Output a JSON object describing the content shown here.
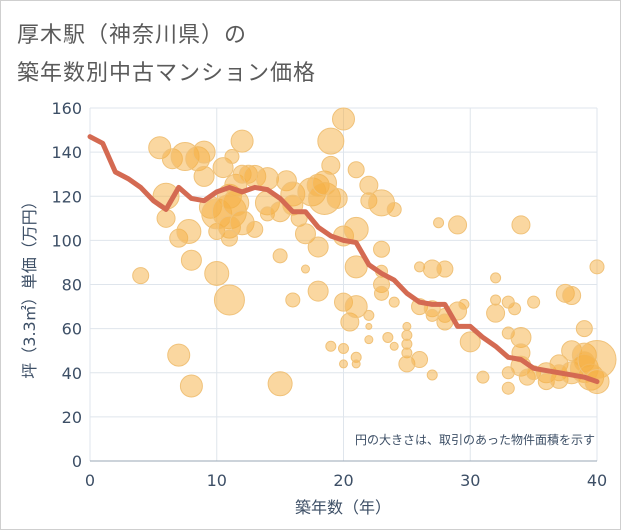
{
  "header": {
    "title_line1": "厚木駅（神奈川県）の",
    "title_line2": "築年数別中古マンション価格"
  },
  "colors": {
    "bubble_fill": "#f5b041",
    "bubble_stroke": "#f0c27a",
    "line": "#d46a52",
    "grid": "#dfe5ec",
    "axis_text": "#3d4f66",
    "title_text": "#5a5a5a"
  },
  "chart_data": {
    "type": "scatter",
    "title": "厚木駅（神奈川県）の築年数別中古マンション価格",
    "xlabel": "築年数（年）",
    "ylabel": "坪（3.3㎡）単価（万円）",
    "xlim": [
      0,
      40
    ],
    "ylim": [
      0,
      160
    ],
    "xticks": [
      0,
      10,
      20,
      30,
      40
    ],
    "yticks": [
      0,
      20,
      40,
      60,
      80,
      100,
      120,
      140,
      160
    ],
    "grid": true,
    "note": "円の大きさは、取引のあった物件面積を示す",
    "trend_line": {
      "x": [
        0,
        1,
        2,
        3,
        4,
        5,
        6,
        7,
        8,
        9,
        10,
        11,
        12,
        13,
        14,
        15,
        16,
        17,
        18,
        19,
        20,
        21,
        22,
        23,
        24,
        25,
        26,
        27,
        28,
        29,
        30,
        31,
        32,
        33,
        34,
        35,
        36,
        37,
        38,
        39,
        40
      ],
      "y": [
        147,
        144,
        131,
        128,
        124,
        118,
        114,
        124,
        119,
        118,
        122,
        124,
        122,
        124,
        123,
        119,
        113,
        113,
        106,
        102,
        100,
        99,
        89,
        85,
        82,
        76,
        72,
        71,
        71,
        61,
        61,
        56,
        52,
        47,
        46,
        42,
        41,
        40,
        39,
        38,
        36
      ]
    },
    "points": [
      {
        "x": 4,
        "y": 84,
        "s": 8
      },
      {
        "x": 5.5,
        "y": 142,
        "s": 11
      },
      {
        "x": 6,
        "y": 120,
        "s": 13
      },
      {
        "x": 6,
        "y": 110,
        "s": 9
      },
      {
        "x": 6.5,
        "y": 137,
        "s": 10
      },
      {
        "x": 7,
        "y": 48,
        "s": 11
      },
      {
        "x": 7,
        "y": 101,
        "s": 9
      },
      {
        "x": 7.5,
        "y": 138,
        "s": 14
      },
      {
        "x": 7.8,
        "y": 104,
        "s": 12
      },
      {
        "x": 8,
        "y": 91,
        "s": 10
      },
      {
        "x": 8,
        "y": 34,
        "s": 11
      },
      {
        "x": 8.5,
        "y": 137,
        "s": 12
      },
      {
        "x": 9,
        "y": 140,
        "s": 11
      },
      {
        "x": 9,
        "y": 129,
        "s": 10
      },
      {
        "x": 9.5,
        "y": 115,
        "s": 11
      },
      {
        "x": 10,
        "y": 85,
        "s": 12
      },
      {
        "x": 10,
        "y": 104,
        "s": 8
      },
      {
        "x": 10,
        "y": 112,
        "s": 15
      },
      {
        "x": 10.5,
        "y": 133,
        "s": 10
      },
      {
        "x": 11,
        "y": 73,
        "s": 15
      },
      {
        "x": 11,
        "y": 120,
        "s": 12
      },
      {
        "x": 11,
        "y": 113,
        "s": 17
      },
      {
        "x": 11,
        "y": 106,
        "s": 11
      },
      {
        "x": 11,
        "y": 101,
        "s": 8
      },
      {
        "x": 11.2,
        "y": 138,
        "s": 7
      },
      {
        "x": 11.5,
        "y": 125,
        "s": 11
      },
      {
        "x": 11.5,
        "y": 117,
        "s": 13
      },
      {
        "x": 12,
        "y": 145,
        "s": 11
      },
      {
        "x": 12,
        "y": 130,
        "s": 9
      },
      {
        "x": 12,
        "y": 108,
        "s": 12
      },
      {
        "x": 12.5,
        "y": 130,
        "s": 9
      },
      {
        "x": 13,
        "y": 129,
        "s": 11
      },
      {
        "x": 13,
        "y": 105,
        "s": 8
      },
      {
        "x": 14,
        "y": 128,
        "s": 11
      },
      {
        "x": 14,
        "y": 117,
        "s": 12
      },
      {
        "x": 14,
        "y": 112,
        "s": 7
      },
      {
        "x": 15,
        "y": 93,
        "s": 7
      },
      {
        "x": 15,
        "y": 35,
        "s": 12
      },
      {
        "x": 15,
        "y": 113,
        "s": 10
      },
      {
        "x": 15.5,
        "y": 127,
        "s": 10
      },
      {
        "x": 16,
        "y": 73,
        "s": 7
      },
      {
        "x": 16,
        "y": 121,
        "s": 12
      },
      {
        "x": 16,
        "y": 116,
        "s": 10
      },
      {
        "x": 16.5,
        "y": 110,
        "s": 8
      },
      {
        "x": 17,
        "y": 103,
        "s": 10
      },
      {
        "x": 17,
        "y": 87,
        "s": 4
      },
      {
        "x": 17.5,
        "y": 122,
        "s": 14
      },
      {
        "x": 18,
        "y": 125,
        "s": 11
      },
      {
        "x": 18,
        "y": 77,
        "s": 10
      },
      {
        "x": 18,
        "y": 97,
        "s": 10
      },
      {
        "x": 18.5,
        "y": 119,
        "s": 16
      },
      {
        "x": 18.5,
        "y": 126,
        "s": 12
      },
      {
        "x": 19,
        "y": 145,
        "s": 13
      },
      {
        "x": 19,
        "y": 134,
        "s": 9
      },
      {
        "x": 19,
        "y": 52,
        "s": 5
      },
      {
        "x": 19.5,
        "y": 119,
        "s": 10
      },
      {
        "x": 20,
        "y": 155,
        "s": 11
      },
      {
        "x": 20,
        "y": 102,
        "s": 10
      },
      {
        "x": 20,
        "y": 72,
        "s": 9
      },
      {
        "x": 20,
        "y": 51,
        "s": 5
      },
      {
        "x": 20,
        "y": 44,
        "s": 4
      },
      {
        "x": 20.5,
        "y": 63,
        "s": 9
      },
      {
        "x": 21,
        "y": 132,
        "s": 8
      },
      {
        "x": 21,
        "y": 105,
        "s": 12
      },
      {
        "x": 21,
        "y": 88,
        "s": 11
      },
      {
        "x": 21,
        "y": 70,
        "s": 11
      },
      {
        "x": 21,
        "y": 47,
        "s": 5
      },
      {
        "x": 21,
        "y": 44,
        "s": 4
      },
      {
        "x": 22,
        "y": 125,
        "s": 9
      },
      {
        "x": 22,
        "y": 118,
        "s": 8
      },
      {
        "x": 22,
        "y": 66,
        "s": 5
      },
      {
        "x": 22,
        "y": 61,
        "s": 3
      },
      {
        "x": 22,
        "y": 55,
        "s": 4
      },
      {
        "x": 23,
        "y": 117,
        "s": 13
      },
      {
        "x": 23,
        "y": 96,
        "s": 8
      },
      {
        "x": 23,
        "y": 86,
        "s": 6
      },
      {
        "x": 23,
        "y": 80,
        "s": 8
      },
      {
        "x": 23,
        "y": 76,
        "s": 7
      },
      {
        "x": 23.5,
        "y": 56,
        "s": 5
      },
      {
        "x": 24,
        "y": 114,
        "s": 7
      },
      {
        "x": 24,
        "y": 52,
        "s": 4
      },
      {
        "x": 24,
        "y": 72,
        "s": 5
      },
      {
        "x": 25,
        "y": 61,
        "s": 4
      },
      {
        "x": 25,
        "y": 57,
        "s": 5
      },
      {
        "x": 25,
        "y": 53,
        "s": 5
      },
      {
        "x": 25,
        "y": 49,
        "s": 5
      },
      {
        "x": 25,
        "y": 44,
        "s": 8
      },
      {
        "x": 26,
        "y": 88,
        "s": 5
      },
      {
        "x": 26,
        "y": 70,
        "s": 8
      },
      {
        "x": 26,
        "y": 46,
        "s": 8
      },
      {
        "x": 27,
        "y": 87,
        "s": 9
      },
      {
        "x": 27,
        "y": 69,
        "s": 8
      },
      {
        "x": 27,
        "y": 66,
        "s": 6
      },
      {
        "x": 27,
        "y": 39,
        "s": 5
      },
      {
        "x": 27.5,
        "y": 108,
        "s": 5
      },
      {
        "x": 28,
        "y": 87,
        "s": 8
      },
      {
        "x": 28,
        "y": 66,
        "s": 7
      },
      {
        "x": 28,
        "y": 63,
        "s": 8
      },
      {
        "x": 29,
        "y": 107,
        "s": 9
      },
      {
        "x": 29,
        "y": 68,
        "s": 9
      },
      {
        "x": 29.5,
        "y": 71,
        "s": 5
      },
      {
        "x": 30,
        "y": 54,
        "s": 10
      },
      {
        "x": 31,
        "y": 38,
        "s": 6
      },
      {
        "x": 32,
        "y": 83,
        "s": 5
      },
      {
        "x": 32,
        "y": 73,
        "s": 5
      },
      {
        "x": 32,
        "y": 67,
        "s": 9
      },
      {
        "x": 33,
        "y": 72,
        "s": 6
      },
      {
        "x": 33,
        "y": 58,
        "s": 6
      },
      {
        "x": 33,
        "y": 40,
        "s": 6
      },
      {
        "x": 33,
        "y": 33,
        "s": 6
      },
      {
        "x": 33.5,
        "y": 69,
        "s": 6
      },
      {
        "x": 34,
        "y": 107,
        "s": 9
      },
      {
        "x": 34,
        "y": 56,
        "s": 10
      },
      {
        "x": 34,
        "y": 49,
        "s": 9
      },
      {
        "x": 34,
        "y": 43,
        "s": 10
      },
      {
        "x": 34.5,
        "y": 38,
        "s": 8
      },
      {
        "x": 35,
        "y": 72,
        "s": 6
      },
      {
        "x": 35,
        "y": 40,
        "s": 7
      },
      {
        "x": 36,
        "y": 40,
        "s": 10
      },
      {
        "x": 36,
        "y": 36,
        "s": 8
      },
      {
        "x": 37,
        "y": 44,
        "s": 9
      },
      {
        "x": 37,
        "y": 40,
        "s": 8
      },
      {
        "x": 37,
        "y": 37,
        "s": 9
      },
      {
        "x": 37.5,
        "y": 76,
        "s": 9
      },
      {
        "x": 38,
        "y": 75,
        "s": 9
      },
      {
        "x": 38,
        "y": 50,
        "s": 10
      },
      {
        "x": 38,
        "y": 40,
        "s": 11
      },
      {
        "x": 39,
        "y": 60,
        "s": 8
      },
      {
        "x": 39,
        "y": 48,
        "s": 12
      },
      {
        "x": 39,
        "y": 45,
        "s": 10
      },
      {
        "x": 39,
        "y": 42,
        "s": 14
      },
      {
        "x": 39.5,
        "y": 38,
        "s": 13
      },
      {
        "x": 40,
        "y": 88,
        "s": 7
      },
      {
        "x": 40,
        "y": 46,
        "s": 19
      },
      {
        "x": 40,
        "y": 36,
        "s": 12
      }
    ]
  }
}
